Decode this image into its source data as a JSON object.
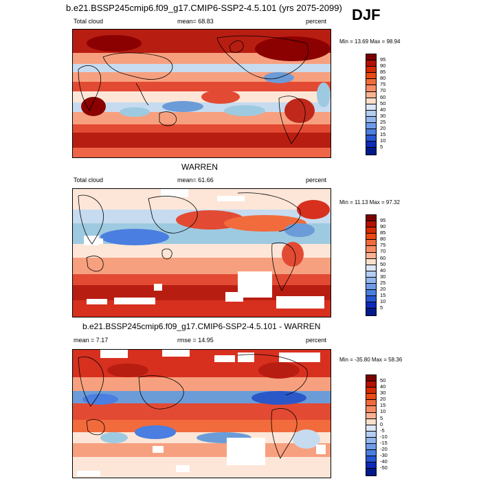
{
  "header": {
    "title": "b.e21.BSSP245cmip6.f09_g17.CMIP6-SSP2-4.5.101 (yrs 2075-2099)",
    "season": "DJF"
  },
  "panels": [
    {
      "title": "",
      "left_label": "Total cloud",
      "center_label": "mean=  68.83",
      "right_label": "percent",
      "minmax": "Min =  13.69 Max =  98.94",
      "colorbar": {
        "labels": [
          "95",
          "90",
          "85",
          "80",
          "75",
          "70",
          "60",
          "50",
          "40",
          "30",
          "25",
          "20",
          "15",
          "10",
          "5"
        ],
        "colors": [
          "#7a0000",
          "#b21000",
          "#d62a00",
          "#ec4a12",
          "#f26b3c",
          "#f68c64",
          "#f9b393",
          "#fde0cc",
          "#dbe6f7",
          "#b4cdf2",
          "#93b6ee",
          "#6f9ce8",
          "#4a7ee0",
          "#2856d2",
          "#0d2bb8",
          "#001a8c"
        ]
      }
    },
    {
      "title": "WARREN",
      "left_label": "Total cloud",
      "center_label": "mean=  61.66",
      "right_label": "percent",
      "minmax": "Min =  11.13 Max =  97.32",
      "colorbar": {
        "labels": [
          "95",
          "90",
          "85",
          "80",
          "75",
          "70",
          "60",
          "50",
          "40",
          "30",
          "25",
          "20",
          "15",
          "10",
          "5"
        ],
        "colors": [
          "#7a0000",
          "#b21000",
          "#d62a00",
          "#ec4a12",
          "#f26b3c",
          "#f68c64",
          "#f9b393",
          "#fde0cc",
          "#dbe6f7",
          "#b4cdf2",
          "#93b6ee",
          "#6f9ce8",
          "#4a7ee0",
          "#2856d2",
          "#0d2bb8",
          "#001a8c"
        ]
      }
    },
    {
      "title": "b.e21.BSSP245cmip6.f09_g17.CMIP6-SSP2-4.5.101 - WARREN",
      "left_label": "mean =   7.17",
      "center_label": "rmse =  14.95",
      "right_label": "percent",
      "minmax": "Min = -35.80 Max =  58.36",
      "colorbar": {
        "labels": [
          "50",
          "40",
          "30",
          "20",
          "15",
          "10",
          "5",
          "0",
          "-5",
          "-10",
          "-15",
          "-20",
          "-30",
          "-40",
          "-50"
        ],
        "colors": [
          "#7a0000",
          "#b21000",
          "#d62a00",
          "#ec4a12",
          "#f26b3c",
          "#f68c64",
          "#f9b393",
          "#fde0cc",
          "#dbe6f7",
          "#b4cdf2",
          "#93b6ee",
          "#6f9ce8",
          "#4a7ee0",
          "#2856d2",
          "#0d2bb8",
          "#001a8c"
        ]
      }
    }
  ],
  "colors": {
    "dark_red": "#8b0000",
    "red": "#d7301f",
    "orange_red": "#ef6548",
    "salmon": "#f7a07f",
    "pale": "#fde6d8",
    "light_blue": "#c6dbef",
    "blue": "#6b9cd8",
    "dark_blue": "#2b58c8"
  }
}
